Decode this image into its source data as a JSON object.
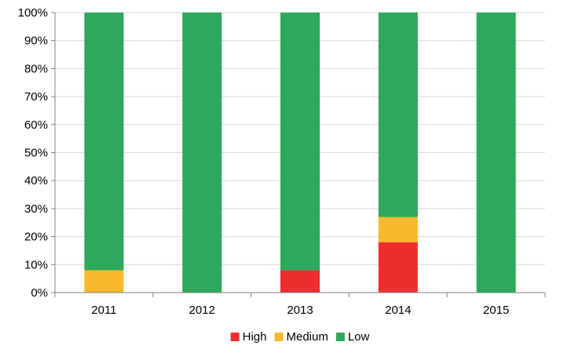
{
  "chart_data": {
    "type": "bar",
    "stacked": true,
    "percent_stacked": true,
    "categories": [
      "2011",
      "2012",
      "2013",
      "2014",
      "2015"
    ],
    "series": [
      {
        "name": "High",
        "color": "#ee2e2e",
        "values": [
          0,
          0,
          8,
          18,
          0
        ]
      },
      {
        "name": "Medium",
        "color": "#f7b92e",
        "values": [
          8,
          0,
          0,
          9,
          0
        ]
      },
      {
        "name": "Low",
        "color": "#2ea85a",
        "values": [
          92,
          100,
          92,
          73,
          100
        ]
      }
    ],
    "y_ticks": [
      "0%",
      "10%",
      "20%",
      "30%",
      "40%",
      "50%",
      "60%",
      "70%",
      "80%",
      "90%",
      "100%"
    ],
    "ylim": [
      0,
      100
    ],
    "grid": true,
    "legend_position": "bottom-center",
    "colors": {
      "grid": "#d9d9d9",
      "axis": "#808080"
    }
  }
}
